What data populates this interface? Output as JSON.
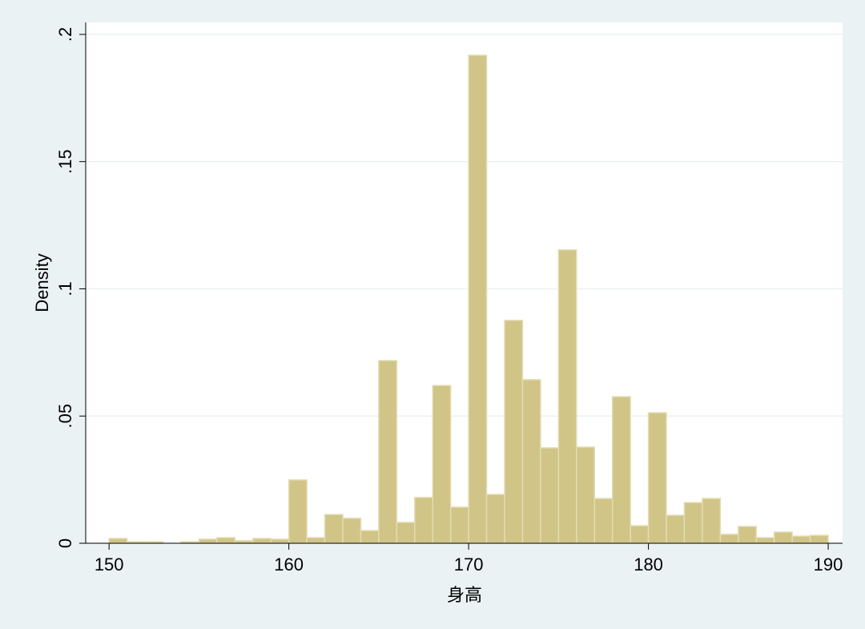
{
  "chart_data": {
    "type": "histogram",
    "x_label": "身高",
    "y_label": "Density",
    "bins": [
      150,
      151,
      152,
      153,
      154,
      155,
      156,
      157,
      158,
      159,
      160,
      161,
      162,
      163,
      164,
      165,
      166,
      167,
      168,
      169,
      170,
      171,
      172,
      173,
      174,
      175,
      176,
      177,
      178,
      179,
      180,
      181,
      182,
      183,
      184,
      185,
      186,
      187,
      188,
      189,
      190
    ],
    "values": [
      0.0019,
      0.0006,
      0.0006,
      0,
      0.0006,
      0.0016,
      0.0022,
      0.001,
      0.0019,
      0.0016,
      0.0249,
      0.0022,
      0.0113,
      0.0098,
      0.005,
      0.0718,
      0.0082,
      0.018,
      0.062,
      0.0142,
      0.1918,
      0.0192,
      0.0876,
      0.0643,
      0.0375,
      0.1153,
      0.0378,
      0.0176,
      0.0576,
      0.0069,
      0.0513,
      0.011,
      0.016,
      0.0176,
      0.0035,
      0.0066,
      0.0022,
      0.0044,
      0.0028,
      0.0031
    ],
    "color": "#d0c487",
    "xlim": [
      148.7,
      190.8
    ],
    "xticks": [
      150,
      160,
      170,
      180,
      190
    ],
    "ylim": [
      0,
      0.2047
    ],
    "yticks": [
      0,
      {
        "value": 0.05,
        "label": ".05"
      },
      {
        "value": 0.1,
        "label": ".1"
      },
      {
        "value": 0.15,
        "label": ".15"
      },
      {
        "value": 0.2,
        "label": ".2"
      }
    ],
    "grid": true
  }
}
